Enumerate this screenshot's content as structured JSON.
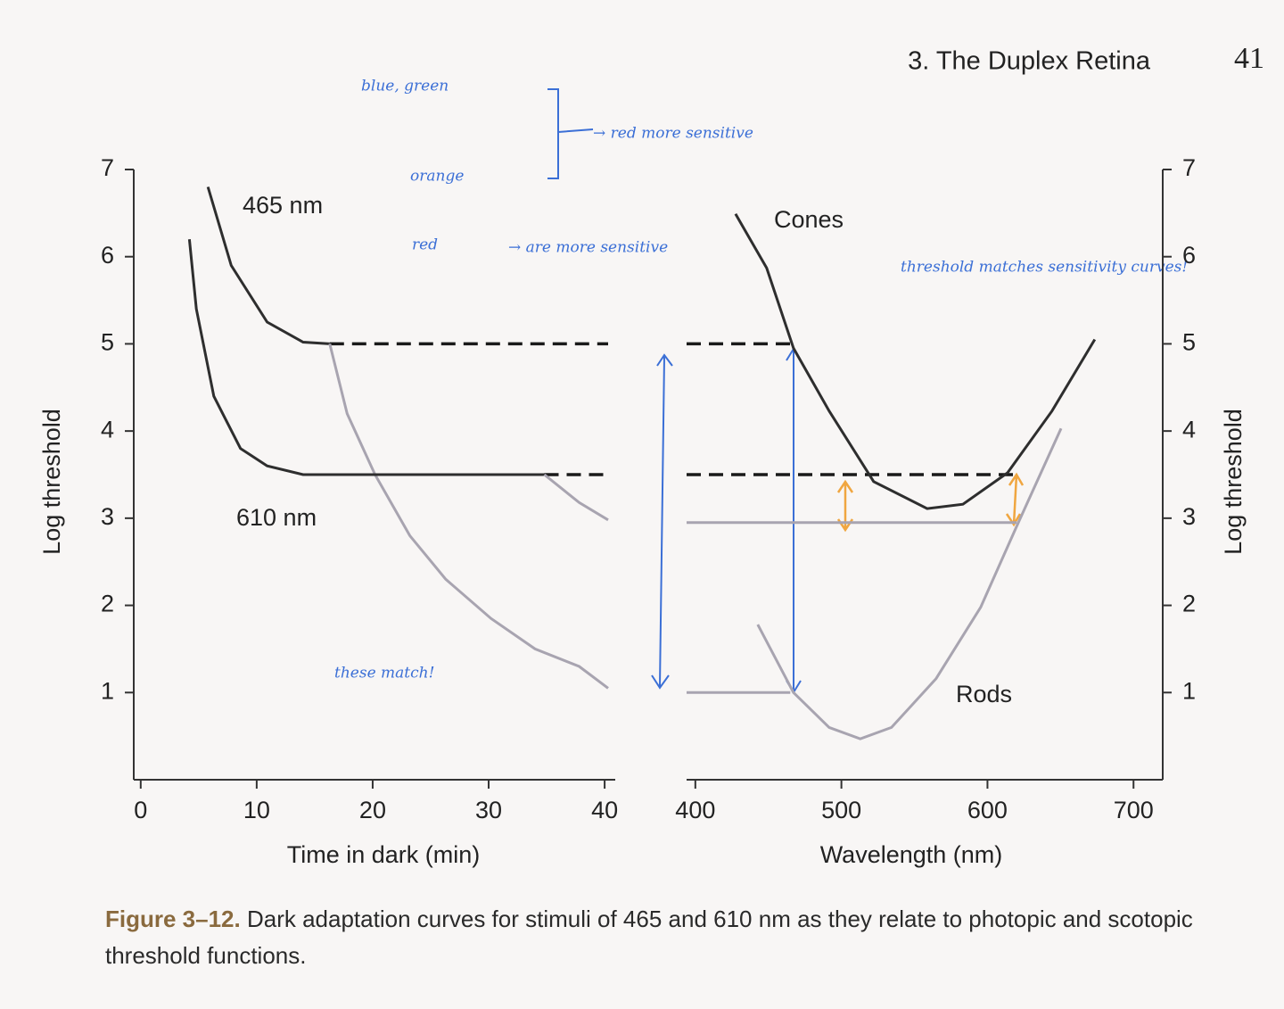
{
  "header": {
    "running_title": "3. The Duplex Retina",
    "page_number": "41"
  },
  "chart_data": [
    {
      "type": "line",
      "xlabel": "Time in dark (min)",
      "ylabel": "Log threshold",
      "xlim": [
        -0.6,
        40.3
      ],
      "xticks": [
        0,
        10,
        20,
        30,
        40
      ],
      "ylim": [
        0,
        7
      ],
      "yticks": [
        1,
        2,
        3,
        4,
        5,
        6,
        7
      ],
      "y_axis_side": "left",
      "annotations": [
        "465 nm",
        "610 nm"
      ],
      "series": [
        {
          "color": "#2e2e2e",
          "dash": false,
          "x": [
            5.8,
            7.8,
            10.9,
            14,
            16.3
          ],
          "values": [
            6.8,
            5.9,
            5.25,
            5.02,
            5
          ]
        },
        {
          "color": "#1a1a1a",
          "dash": true,
          "x": [
            16.3,
            40.3
          ],
          "values": [
            5,
            5
          ]
        },
        {
          "color": "#a8a4b0",
          "dash": false,
          "x": [
            16.3,
            17.8,
            20.2,
            23.2,
            26.3,
            30.2,
            34,
            37.8,
            40.3
          ],
          "values": [
            5,
            4.2,
            3.5,
            2.8,
            2.3,
            1.85,
            1.5,
            1.3,
            1.05
          ]
        },
        {
          "color": "#2e2e2e",
          "dash": false,
          "x": [
            4.2,
            4.8,
            6.3,
            8.6,
            10.9,
            14,
            34.8
          ],
          "values": [
            6.2,
            5.4,
            4.4,
            3.8,
            3.6,
            3.5,
            3.5
          ]
        },
        {
          "color": "#1a1a1a",
          "dash": true,
          "x": [
            34.8,
            40.3
          ],
          "values": [
            3.5,
            3.5
          ]
        },
        {
          "color": "#a8a4b0",
          "dash": false,
          "x": [
            34.8,
            37.8,
            40.3
          ],
          "values": [
            3.5,
            3.18,
            2.98
          ]
        }
      ]
    },
    {
      "type": "line",
      "xlabel": "Wavelength (nm)",
      "ylabel": "Log threshold",
      "xlim": [
        394,
        720
      ],
      "xticks": [
        400,
        500,
        600,
        700
      ],
      "ylim": [
        0,
        7
      ],
      "yticks": [
        1,
        2,
        3,
        4,
        5,
        6,
        7
      ],
      "y_axis_side": "right",
      "annotations": [
        "Cones",
        "Rods"
      ],
      "series": [
        {
          "color": "#1a1a1a",
          "dash": true,
          "x": [
            394,
            465
          ],
          "values": [
            5,
            5
          ]
        },
        {
          "color": "#a8a4b0",
          "dash": false,
          "x": [
            394,
            465
          ],
          "values": [
            1,
            1
          ]
        },
        {
          "color": "#1a1a1a",
          "dash": true,
          "x": [
            394,
            620
          ],
          "values": [
            3.5,
            3.5
          ]
        },
        {
          "color": "#a8a4b0",
          "dash": false,
          "x": [
            394,
            620
          ],
          "values": [
            2.95,
            2.95
          ]
        },
        {
          "color": "#2e2e2e",
          "dash": false,
          "x": [
            427.5,
            448.8,
            467.2,
            491.6,
            522.1,
            558.7,
            583.2,
            613.7,
            644.2,
            673.5
          ],
          "values": [
            6.49,
            5.87,
            4.95,
            4.23,
            3.42,
            3.11,
            3.16,
            3.52,
            4.23,
            5.05
          ]
        },
        {
          "color": "#a8a4b0",
          "dash": false,
          "x": [
            442.7,
            467.2,
            491.6,
            512.9,
            534.3,
            564.8,
            595.4,
            619.8,
            650.4
          ],
          "values": [
            1.78,
            1,
            0.6,
            0.47,
            0.6,
            1.16,
            1.98,
            2.9,
            4.03
          ]
        }
      ]
    }
  ],
  "handwritten_notes": [
    "blue, green",
    "orange",
    "→ red more sensitive",
    "red",
    "→ are more sensitive",
    "threshold matches sensitivity curves!",
    "these match!"
  ],
  "caption": {
    "label": "Figure 3–12.",
    "text": "Dark adaptation curves for stimuli of 465 and 610 nm as they relate to photopic and scotopic threshold functions."
  }
}
